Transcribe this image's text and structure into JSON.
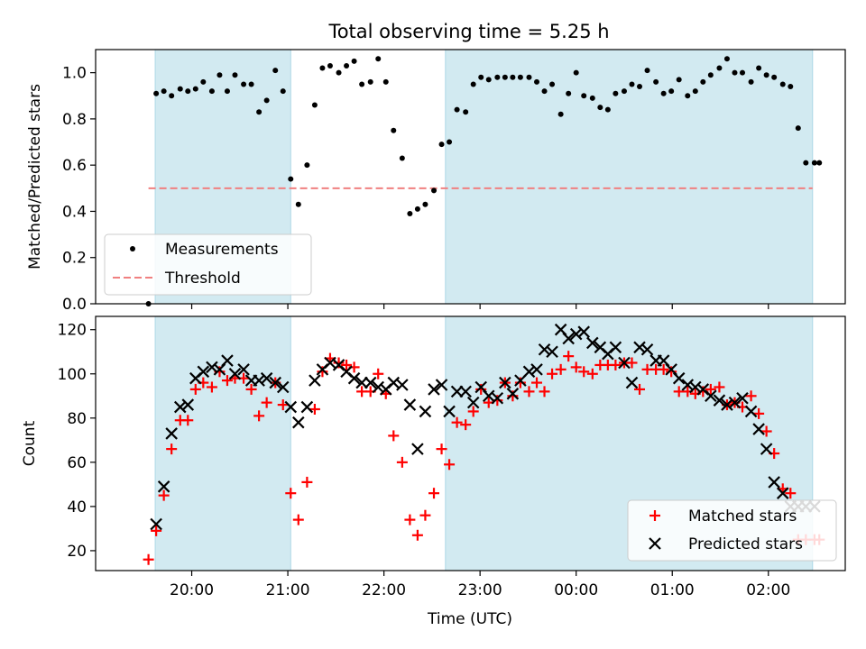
{
  "figure": {
    "title": "Total observing time = 5.25 h",
    "xlabel": "Time (UTC)"
  },
  "chart_data": [
    {
      "type": "scatter",
      "panel": "top",
      "ylabel": "Matched/Predicted stars",
      "x_unit": "hours since 19:00 UTC",
      "xlim": [
        19.0,
        26.8
      ],
      "ylim": [
        0,
        1.1
      ],
      "yticks": [
        "0.0",
        "0.2",
        "0.4",
        "0.6",
        "0.8",
        "1.0"
      ],
      "xticks": [
        "20:00",
        "21:00",
        "22:00",
        "23:00",
        "00:00",
        "01:00",
        "02:00"
      ],
      "shaded_intervals": [
        [
          19.62,
          21.03
        ],
        [
          22.64,
          26.46
        ]
      ],
      "shade_color": "#add8e6",
      "threshold": {
        "name": "Threshold",
        "value": 0.5,
        "xrange": [
          19.55,
          26.46
        ],
        "color": "#f08080"
      },
      "legend": {
        "position": "lower-left",
        "entries": [
          "Measurements",
          "Threshold"
        ]
      },
      "series": [
        {
          "name": "Measurements",
          "color": "#000000",
          "x": [
            19.55,
            19.63,
            19.71,
            19.79,
            19.88,
            19.96,
            20.04,
            20.12,
            20.21,
            20.29,
            20.37,
            20.45,
            20.54,
            20.62,
            20.7,
            20.78,
            20.87,
            20.95,
            21.03,
            21.11,
            21.2,
            21.28,
            21.36,
            21.44,
            21.53,
            21.61,
            21.69,
            21.77,
            21.86,
            21.94,
            22.02,
            22.1,
            22.19,
            22.27,
            22.35,
            22.43,
            22.52,
            22.6,
            22.68,
            22.76,
            22.85,
            22.93,
            23.01,
            23.09,
            23.18,
            23.26,
            23.34,
            23.42,
            23.51,
            23.59,
            23.67,
            23.75,
            23.84,
            23.92,
            24.0,
            24.08,
            24.17,
            24.25,
            24.33,
            24.41,
            24.5,
            24.58,
            24.66,
            24.74,
            24.83,
            24.91,
            24.99,
            25.07,
            25.16,
            25.24,
            25.32,
            25.4,
            25.49,
            25.57,
            25.65,
            25.73,
            25.82,
            25.9,
            25.98,
            26.06,
            26.15,
            26.23,
            26.31,
            26.39,
            26.48,
            26.53
          ],
          "y": [
            0.0,
            0.91,
            0.92,
            0.9,
            0.93,
            0.92,
            0.93,
            0.96,
            0.92,
            0.99,
            0.92,
            0.99,
            0.95,
            0.95,
            0.83,
            0.88,
            1.01,
            0.92,
            0.54,
            0.43,
            0.6,
            0.86,
            1.02,
            1.03,
            1.0,
            1.03,
            1.05,
            0.95,
            0.96,
            1.06,
            0.96,
            0.75,
            0.63,
            0.39,
            0.41,
            0.43,
            0.49,
            0.69,
            0.7,
            0.84,
            0.83,
            0.95,
            0.98,
            0.97,
            0.98,
            0.98,
            0.98,
            0.98,
            0.98,
            0.96,
            0.92,
            0.95,
            0.82,
            0.91,
            1.0,
            0.9,
            0.89,
            0.85,
            0.84,
            0.91,
            0.92,
            0.95,
            0.94,
            1.01,
            0.96,
            0.91,
            0.92,
            0.97,
            0.9,
            0.92,
            0.96,
            0.99,
            1.02,
            1.06,
            1.0,
            1.0,
            0.96,
            1.02,
            0.99,
            0.98,
            0.95,
            0.94,
            0.76,
            0.61,
            0.61,
            0.61
          ]
        }
      ]
    },
    {
      "type": "scatter",
      "panel": "bottom",
      "ylabel": "Count",
      "x_unit": "hours since 19:00 UTC",
      "xlim": [
        19.0,
        26.8
      ],
      "ylim": [
        11,
        126
      ],
      "yticks": [
        "20",
        "40",
        "60",
        "80",
        "100",
        "120"
      ],
      "xticks": [
        "20:00",
        "21:00",
        "22:00",
        "23:00",
        "00:00",
        "01:00",
        "02:00"
      ],
      "shaded_intervals": [
        [
          19.62,
          21.03
        ],
        [
          22.64,
          26.46
        ]
      ],
      "shade_color": "#add8e6",
      "legend": {
        "position": "lower-right",
        "entries": [
          "Matched stars",
          "Predicted stars"
        ]
      },
      "series": [
        {
          "name": "Matched stars",
          "marker": "plus",
          "color": "#ff0000",
          "x": [
            19.55,
            19.63,
            19.71,
            19.79,
            19.88,
            19.96,
            20.04,
            20.12,
            20.21,
            20.29,
            20.37,
            20.45,
            20.54,
            20.62,
            20.7,
            20.78,
            20.87,
            20.95,
            21.03,
            21.11,
            21.2,
            21.28,
            21.36,
            21.44,
            21.53,
            21.61,
            21.69,
            21.77,
            21.86,
            21.94,
            22.02,
            22.1,
            22.19,
            22.27,
            22.35,
            22.43,
            22.52,
            22.6,
            22.68,
            22.76,
            22.85,
            22.93,
            23.01,
            23.09,
            23.18,
            23.26,
            23.34,
            23.42,
            23.51,
            23.59,
            23.67,
            23.75,
            23.84,
            23.92,
            24.0,
            24.08,
            24.17,
            24.25,
            24.33,
            24.41,
            24.5,
            24.58,
            24.66,
            24.74,
            24.83,
            24.91,
            24.99,
            25.07,
            25.16,
            25.24,
            25.32,
            25.4,
            25.49,
            25.57,
            25.65,
            25.73,
            25.82,
            25.9,
            25.98,
            26.06,
            26.15,
            26.23,
            26.31,
            26.39,
            26.48,
            26.53
          ],
          "y": [
            16,
            29,
            45,
            66,
            79,
            79,
            93,
            96,
            94,
            101,
            97,
            98,
            98,
            93,
            81,
            87,
            96,
            86,
            46,
            34,
            51,
            84,
            101,
            107,
            105,
            104,
            103,
            92,
            92,
            100,
            91,
            72,
            60,
            34,
            27,
            36,
            46,
            66,
            59,
            78,
            77,
            83,
            93,
            87,
            88,
            96,
            90,
            96,
            92,
            96,
            92,
            100,
            102,
            108,
            103,
            101,
            100,
            104,
            104,
            104,
            105,
            105,
            93,
            102,
            102,
            102,
            101,
            92,
            92,
            91,
            92,
            93,
            94,
            86,
            87,
            85,
            90,
            82,
            74,
            64,
            48,
            46,
            25,
            25,
            25,
            25
          ]
        },
        {
          "name": "Predicted stars",
          "marker": "x",
          "color": "#000000",
          "x": [
            19.63,
            19.71,
            19.79,
            19.88,
            19.96,
            20.04,
            20.12,
            20.21,
            20.29,
            20.37,
            20.45,
            20.54,
            20.62,
            20.7,
            20.78,
            20.87,
            20.95,
            21.03,
            21.11,
            21.2,
            21.28,
            21.36,
            21.44,
            21.53,
            21.61,
            21.69,
            21.77,
            21.86,
            21.94,
            22.02,
            22.1,
            22.19,
            22.27,
            22.35,
            22.43,
            22.52,
            22.6,
            22.68,
            22.76,
            22.85,
            22.93,
            23.01,
            23.09,
            23.18,
            23.26,
            23.34,
            23.42,
            23.51,
            23.59,
            23.67,
            23.75,
            23.84,
            23.92,
            24.0,
            24.08,
            24.17,
            24.25,
            24.33,
            24.41,
            24.5,
            24.58,
            24.66,
            24.74,
            24.83,
            24.91,
            24.99,
            25.07,
            25.16,
            25.24,
            25.32,
            25.4,
            25.49,
            25.57,
            25.65,
            25.73,
            25.82,
            25.9,
            25.98,
            26.06,
            26.15,
            26.23,
            26.31,
            26.39,
            26.48
          ],
          "y": [
            32,
            49,
            73,
            85,
            86,
            98,
            101,
            103,
            102,
            106,
            100,
            102,
            97,
            97,
            98,
            96,
            94,
            85,
            78,
            85,
            97,
            102,
            105,
            104,
            101,
            98,
            96,
            96,
            94,
            93,
            96,
            95,
            86,
            66,
            83,
            93,
            95,
            83,
            92,
            92,
            87,
            94,
            90,
            89,
            96,
            91,
            97,
            101,
            102,
            111,
            110,
            120,
            116,
            118,
            119,
            114,
            112,
            109,
            112,
            105,
            96,
            112,
            111,
            106,
            106,
            102,
            98,
            95,
            94,
            93,
            90,
            88,
            86,
            87,
            89,
            83,
            75,
            66,
            51,
            46,
            40,
            40,
            40,
            40
          ]
        }
      ]
    }
  ]
}
